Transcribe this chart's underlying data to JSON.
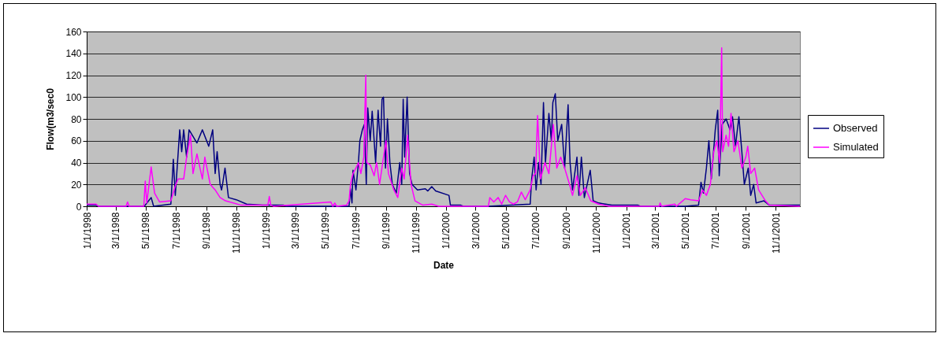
{
  "chart_data": {
    "type": "line",
    "xlabel": "Date",
    "ylabel": "Flow(m3/sec0",
    "xlim": [
      "1998-01-01",
      "2001-12-20"
    ],
    "ylim": [
      0,
      160
    ],
    "yticks": [
      0,
      20,
      40,
      60,
      80,
      100,
      120,
      140,
      160
    ],
    "xticks": [
      {
        "value": "1998-01-01",
        "label": "1/1/1998"
      },
      {
        "value": "1998-03-01",
        "label": "3/1/1998"
      },
      {
        "value": "1998-05-01",
        "label": "5/1/1998"
      },
      {
        "value": "1998-07-01",
        "label": "7/1/1998"
      },
      {
        "value": "1998-09-01",
        "label": "9/1/1998"
      },
      {
        "value": "1998-11-01",
        "label": "11/1/1998"
      },
      {
        "value": "1999-01-01",
        "label": "1/1/1999"
      },
      {
        "value": "1999-03-01",
        "label": "3/1/1999"
      },
      {
        "value": "1999-05-01",
        "label": "5/1/1999"
      },
      {
        "value": "1999-07-01",
        "label": "7/1/1999"
      },
      {
        "value": "1999-09-01",
        "label": "9/1/1999"
      },
      {
        "value": "1999-11-01",
        "label": "11/1/1999"
      },
      {
        "value": "2000-01-01",
        "label": "1/1/2000"
      },
      {
        "value": "2000-03-01",
        "label": "3/1/2000"
      },
      {
        "value": "2000-05-01",
        "label": "5/1/2000"
      },
      {
        "value": "2000-07-01",
        "label": "7/1/2000"
      },
      {
        "value": "2000-09-01",
        "label": "9/1/2000"
      },
      {
        "value": "2000-11-01",
        "label": "11/1/2000"
      },
      {
        "value": "2001-01-01",
        "label": "1/1/2001"
      },
      {
        "value": "2001-03-01",
        "label": "3/1/2001"
      },
      {
        "value": "2001-05-01",
        "label": "5/1/2001"
      },
      {
        "value": "2001-07-01",
        "label": "7/1/2001"
      },
      {
        "value": "2001-09-01",
        "label": "9/1/2001"
      },
      {
        "value": "2001-11-01",
        "label": "11/1/2001"
      }
    ],
    "grid": "y",
    "legend": "right",
    "line_style": "solid",
    "marker": "none",
    "series": [
      {
        "name": "Observed",
        "color": "#000080",
        "x": [
          "1998-01-01",
          "1998-01-20",
          "1998-01-25",
          "1998-04-28",
          "1998-05-12",
          "1998-05-17",
          "1998-06-21",
          "1998-06-26",
          "1998-06-30",
          "1998-07-09",
          "1998-07-13",
          "1998-07-17",
          "1998-07-23",
          "1998-07-28",
          "1998-08-13",
          "1998-08-24",
          "1998-09-06",
          "1998-09-14",
          "1998-09-19",
          "1998-09-23",
          "1998-09-29",
          "1998-10-02",
          "1998-10-04",
          "1998-10-09",
          "1998-10-16",
          "1998-11-01",
          "1998-11-22",
          "1998-12-24",
          "1999-02-05",
          "1999-02-10",
          "1999-06-18",
          "1999-06-21",
          "1999-06-24",
          "1999-06-26",
          "1999-07-02",
          "1999-07-07",
          "1999-07-10",
          "1999-07-15",
          "1999-07-19",
          "1999-07-23",
          "1999-07-26",
          "1999-07-31",
          "1999-08-04",
          "1999-08-11",
          "1999-08-16",
          "1999-08-21",
          "1999-08-24",
          "1999-08-27",
          "1999-08-31",
          "1999-09-04",
          "1999-09-09",
          "1999-09-14",
          "1999-09-22",
          "1999-09-29",
          "1999-10-03",
          "1999-10-06",
          "1999-10-09",
          "1999-10-14",
          "1999-10-19",
          "1999-10-24",
          "1999-11-04",
          "1999-11-20",
          "1999-11-25",
          "1999-12-03",
          "1999-12-11",
          "2000-01-07",
          "2000-01-10",
          "2000-01-31",
          "2000-02-05",
          "2000-03-27",
          "2000-06-20",
          "2000-06-23",
          "2000-06-28",
          "2000-07-02",
          "2000-07-07",
          "2000-07-12",
          "2000-07-17",
          "2000-07-21",
          "2000-07-28",
          "2000-08-02",
          "2000-08-05",
          "2000-08-10",
          "2000-08-15",
          "2000-08-23",
          "2000-08-29",
          "2000-09-05",
          "2000-09-09",
          "2000-09-14",
          "2000-09-23",
          "2000-09-27",
          "2000-10-02",
          "2000-10-08",
          "2000-10-20",
          "2000-10-26",
          "2000-11-06",
          "2000-12-03",
          "2001-01-25",
          "2001-01-30",
          "2001-05-01",
          "2001-05-28",
          "2001-06-02",
          "2001-06-07",
          "2001-06-13",
          "2001-06-18",
          "2001-06-23",
          "2001-07-01",
          "2001-07-06",
          "2001-07-09",
          "2001-07-15",
          "2001-07-23",
          "2001-07-31",
          "2001-08-05",
          "2001-08-11",
          "2001-08-18",
          "2001-08-24",
          "2001-08-29",
          "2001-09-06",
          "2001-09-11",
          "2001-09-17",
          "2001-09-22",
          "2001-10-08",
          "2001-10-19",
          "2001-12-20"
        ],
        "values": [
          1,
          1,
          0,
          0,
          8,
          0,
          2,
          43,
          10,
          70,
          50,
          70,
          45,
          70,
          58,
          70,
          55,
          70,
          30,
          50,
          20,
          15,
          20,
          35,
          8,
          6,
          2,
          1,
          1,
          0,
          0,
          16,
          3,
          33,
          15,
          40,
          60,
          70,
          75,
          20,
          90,
          60,
          87,
          40,
          88,
          55,
          98,
          100,
          35,
          80,
          40,
          20,
          12,
          40,
          20,
          98,
          45,
          100,
          30,
          20,
          15,
          16,
          14,
          18,
          14,
          10,
          1,
          1,
          0,
          0,
          2,
          25,
          45,
          15,
          40,
          20,
          95,
          40,
          85,
          60,
          95,
          103,
          60,
          75,
          35,
          93,
          40,
          15,
          45,
          10,
          45,
          8,
          33,
          5,
          3,
          1,
          1,
          0,
          0,
          1,
          22,
          12,
          35,
          60,
          25,
          70,
          88,
          28,
          75,
          80,
          70,
          82,
          55,
          82,
          50,
          20,
          35,
          10,
          20,
          3,
          5,
          1,
          1
        ]
      },
      {
        "name": "Simulated",
        "color": "#ff00ff",
        "x": [
          "1998-01-01",
          "1998-01-20",
          "1998-01-25",
          "1998-03-22",
          "1998-03-25",
          "1998-03-28",
          "1998-04-27",
          "1998-04-30",
          "1998-05-03",
          "1998-05-12",
          "1998-05-19",
          "1998-05-29",
          "1998-06-21",
          "1998-07-01",
          "1998-07-06",
          "1998-07-17",
          "1998-07-23",
          "1998-07-31",
          "1998-08-05",
          "1998-08-13",
          "1998-08-24",
          "1998-08-29",
          "1998-09-09",
          "1998-09-19",
          "1998-09-29",
          "1998-10-10",
          "1998-11-11",
          "1999-01-04",
          "1999-01-07",
          "1999-01-10",
          "1999-01-16",
          "1999-05-12",
          "1999-05-16",
          "1999-05-20",
          "1999-05-24",
          "1999-06-13",
          "1999-06-18",
          "1999-06-21",
          "1999-06-26",
          "1999-07-02",
          "1999-07-07",
          "1999-07-12",
          "1999-07-18",
          "1999-07-22",
          "1999-07-24",
          "1999-07-31",
          "1999-08-08",
          "1999-08-13",
          "1999-08-19",
          "1999-08-27",
          "1999-09-01",
          "1999-09-06",
          "1999-09-17",
          "1999-09-25",
          "1999-10-03",
          "1999-10-08",
          "1999-10-15",
          "1999-10-22",
          "1999-10-30",
          "1999-11-15",
          "1999-12-03",
          "1999-12-17",
          "2000-03-27",
          "2000-03-30",
          "2000-04-07",
          "2000-04-16",
          "2000-04-23",
          "2000-05-01",
          "2000-05-09",
          "2000-05-17",
          "2000-05-25",
          "2000-06-02",
          "2000-06-10",
          "2000-06-20",
          "2000-06-26",
          "2000-07-01",
          "2000-07-05",
          "2000-07-11",
          "2000-07-20",
          "2000-07-28",
          "2000-08-06",
          "2000-08-13",
          "2000-08-21",
          "2000-08-29",
          "2000-09-08",
          "2000-09-14",
          "2000-09-23",
          "2000-09-30",
          "2000-10-10",
          "2000-10-21",
          "2000-11-06",
          "2000-11-27",
          "2001-03-09",
          "2001-03-11",
          "2001-03-14",
          "2001-04-10",
          "2001-04-13",
          "2001-05-01",
          "2001-05-12",
          "2001-05-28",
          "2001-06-05",
          "2001-06-13",
          "2001-06-21",
          "2001-06-28",
          "2001-07-04",
          "2001-07-10",
          "2001-07-14",
          "2001-07-16",
          "2001-07-23",
          "2001-07-28",
          "2001-08-02",
          "2001-08-08",
          "2001-08-16",
          "2001-08-24",
          "2001-09-01",
          "2001-09-05",
          "2001-09-11",
          "2001-09-19",
          "2001-09-27",
          "2001-10-11",
          "2001-10-19",
          "2001-12-20"
        ],
        "values": [
          2,
          2,
          0,
          0,
          4,
          0,
          0,
          23,
          3,
          36,
          12,
          4,
          5,
          20,
          25,
          25,
          45,
          65,
          30,
          48,
          25,
          45,
          20,
          15,
          8,
          5,
          1,
          1,
          9,
          1,
          0,
          4,
          0,
          3,
          0,
          1,
          5,
          20,
          30,
          35,
          40,
          30,
          45,
          120,
          40,
          38,
          28,
          40,
          20,
          45,
          60,
          30,
          15,
          8,
          35,
          25,
          65,
          20,
          5,
          1,
          2,
          0,
          0,
          8,
          4,
          8,
          2,
          10,
          4,
          2,
          4,
          13,
          6,
          15,
          28,
          30,
          83,
          25,
          40,
          30,
          75,
          35,
          45,
          35,
          20,
          10,
          28,
          10,
          17,
          5,
          2,
          0,
          0,
          3,
          0,
          2,
          0,
          7,
          6,
          5,
          15,
          10,
          20,
          50,
          60,
          40,
          145,
          50,
          65,
          55,
          85,
          50,
          60,
          35,
          45,
          55,
          30,
          35,
          15,
          5,
          1,
          0
        ]
      }
    ]
  }
}
